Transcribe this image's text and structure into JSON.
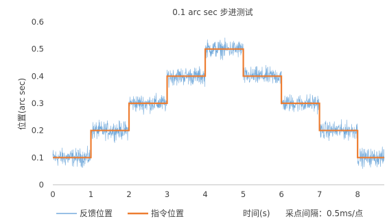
{
  "chart_data": {
    "type": "line",
    "title": "0.1 arc sec 步进测试",
    "xlabel": "",
    "ylabel": "位置(arc sec)",
    "xlim": [
      0,
      8.7
    ],
    "ylim": [
      0,
      0.6
    ],
    "xticks": [
      "0",
      "1",
      "2",
      "3",
      "4",
      "5",
      "6",
      "7",
      "8"
    ],
    "yticks": [
      "0",
      "0.1",
      "0.2",
      "0.3",
      "0.4",
      "0.5",
      "0.6"
    ],
    "grid": false,
    "legend_position": "bottom-left",
    "series": [
      {
        "name": "反馈位置",
        "color": "#5b9bd5",
        "style": "noisy line",
        "noise_amplitude": 0.025,
        "x": [
          0,
          1,
          1,
          2,
          2,
          3,
          3,
          4,
          4,
          5,
          5,
          6,
          6,
          7,
          7,
          8,
          8,
          8.7
        ],
        "y": [
          0.1,
          0.1,
          0.2,
          0.2,
          0.3,
          0.3,
          0.4,
          0.4,
          0.5,
          0.5,
          0.4,
          0.4,
          0.3,
          0.3,
          0.2,
          0.2,
          0.1,
          0.1
        ]
      },
      {
        "name": "指令位置",
        "color": "#ed7d31",
        "style": "step line",
        "x": [
          0,
          1,
          1,
          2,
          2,
          3,
          3,
          4,
          4,
          5,
          5,
          6,
          6,
          7,
          7,
          8,
          8,
          8.7
        ],
        "y": [
          0.1,
          0.1,
          0.2,
          0.2,
          0.3,
          0.3,
          0.4,
          0.4,
          0.5,
          0.5,
          0.4,
          0.4,
          0.3,
          0.3,
          0.2,
          0.2,
          0.1,
          0.1
        ]
      }
    ]
  },
  "notes": {
    "time_label": "时间(s)",
    "sampling_label": "采点间隔：0.5ms/点"
  }
}
